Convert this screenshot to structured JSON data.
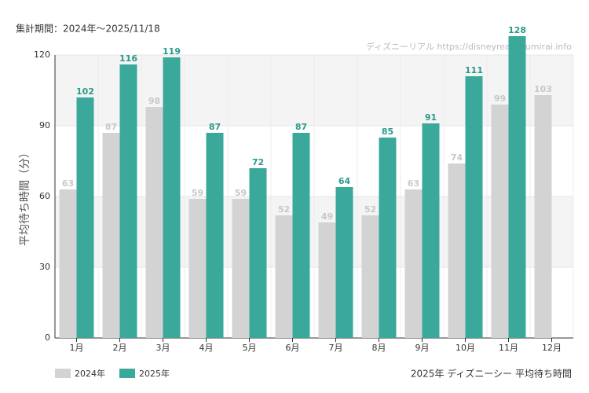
{
  "chart_data": {
    "type": "bar",
    "period": "集計期間：2024年〜2025/11/18",
    "watermark": "ディズニーリアル https://disneyreal.asumirai.info",
    "caption": "2025年 ディズニーシー 平均待ち時間",
    "y_label": "平均待ち時間（分）",
    "categories": [
      "1月",
      "2月",
      "3月",
      "4月",
      "5月",
      "6月",
      "7月",
      "8月",
      "9月",
      "10月",
      "11月",
      "12月"
    ],
    "series": [
      {
        "name": "2024年",
        "color": "#d3d3d3",
        "label_color": "#c8c8c8",
        "values": [
          63,
          87,
          98,
          59,
          59,
          52,
          49,
          52,
          63,
          74,
          99,
          103
        ]
      },
      {
        "name": "2025年",
        "color": "#3aa89a",
        "label_color": "#2a9a8c",
        "values": [
          102,
          116,
          119,
          87,
          72,
          87,
          64,
          85,
          91,
          111,
          128,
          null
        ]
      }
    ],
    "ylim": [
      0,
      120
    ],
    "yticks": [
      0,
      30,
      60,
      90,
      120
    ],
    "grid": true
  }
}
